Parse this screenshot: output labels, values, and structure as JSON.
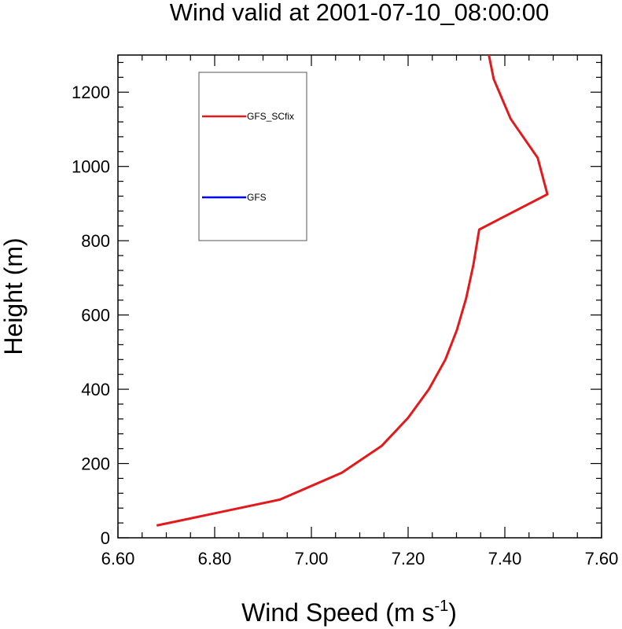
{
  "chart_data": {
    "type": "line",
    "title": "Wind valid at 2001-07-10_08:00:00",
    "xlabel_main": "Wind Speed (m s",
    "xlabel_sup": "-1",
    "xlabel_close": ")",
    "ylabel": "Height (m)",
    "xlim": [
      6.6,
      7.6
    ],
    "ylim": [
      0,
      1300
    ],
    "xticks": [
      6.6,
      6.8,
      7.0,
      7.2,
      7.4,
      7.6
    ],
    "xtick_labels": [
      "6.60",
      "6.80",
      "7.00",
      "7.20",
      "7.40",
      "7.60"
    ],
    "yticks": [
      0,
      200,
      400,
      600,
      800,
      1000,
      1200
    ],
    "ytick_labels": [
      "0",
      "200",
      "400",
      "600",
      "800",
      "1000",
      "1200"
    ],
    "legend_position": "top-left",
    "series": [
      {
        "name": "GFS_SCfix",
        "color": "#e31a1c",
        "x": [
          6.68,
          6.935,
          7.063,
          7.145,
          7.2,
          7.243,
          7.277,
          7.301,
          7.32,
          7.335,
          7.347,
          7.488,
          7.468,
          7.412,
          7.377,
          7.367
        ],
        "y": [
          33,
          103,
          175,
          247,
          323,
          400,
          480,
          560,
          645,
          735,
          830,
          925,
          1023,
          1128,
          1235,
          1300
        ]
      },
      {
        "name": "GFS",
        "color": "#0000e6",
        "x": [],
        "y": []
      }
    ]
  }
}
